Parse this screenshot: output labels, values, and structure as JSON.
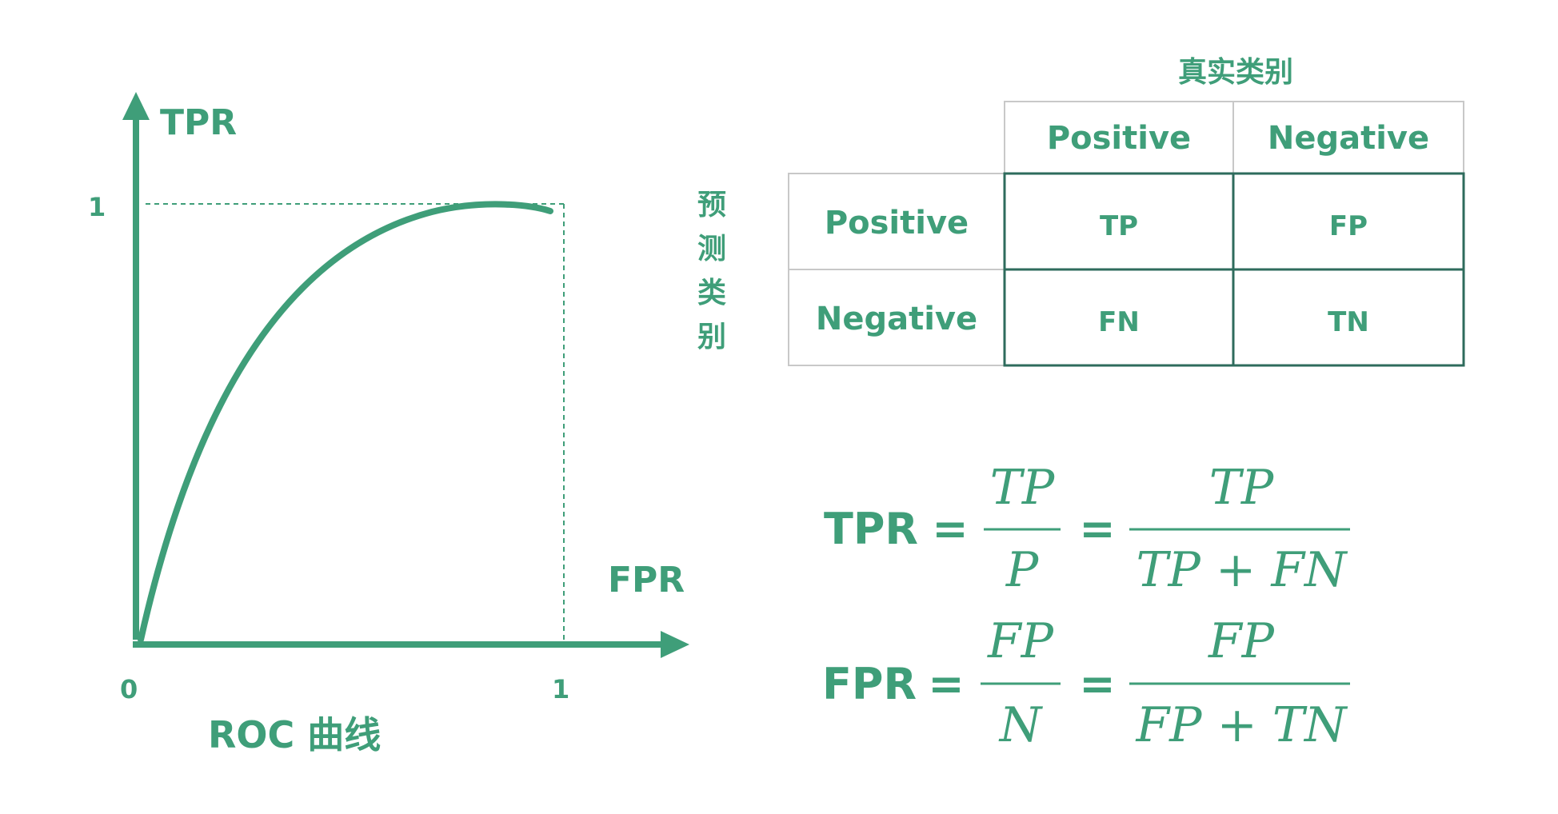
{
  "roc": {
    "y_axis_label": "TPR",
    "x_axis_label": "FPR",
    "y_tick_1": "1",
    "x_tick_0": "0",
    "x_tick_1": "1",
    "caption": "ROC 曲线"
  },
  "matrix": {
    "actual_label": "真实类别",
    "predicted_label_chars": [
      "预",
      "测",
      "类",
      "别"
    ],
    "col_headers": [
      "Positive",
      "Negative"
    ],
    "row_headers": [
      "Positive",
      "Negative"
    ],
    "cells": [
      [
        "TP",
        "FP"
      ],
      [
        "FN",
        "TN"
      ]
    ]
  },
  "formulas": {
    "tpr": {
      "lhs": "TPR",
      "eq1": "=",
      "frac1_num": "TP",
      "frac1_den": "P",
      "eq2": "=",
      "frac2_num": "TP",
      "frac2_den": "TP + FN"
    },
    "fpr": {
      "lhs": "FPR",
      "eq1": "=",
      "frac1_num": "FP",
      "frac1_den": "N",
      "eq2": "=",
      "frac2_num": "FP",
      "frac2_den": "FP + TN"
    }
  },
  "colors": {
    "accent": "#3f9e79",
    "accent_dark": "#2e6b5c",
    "grid_light": "#c8c8c8"
  }
}
